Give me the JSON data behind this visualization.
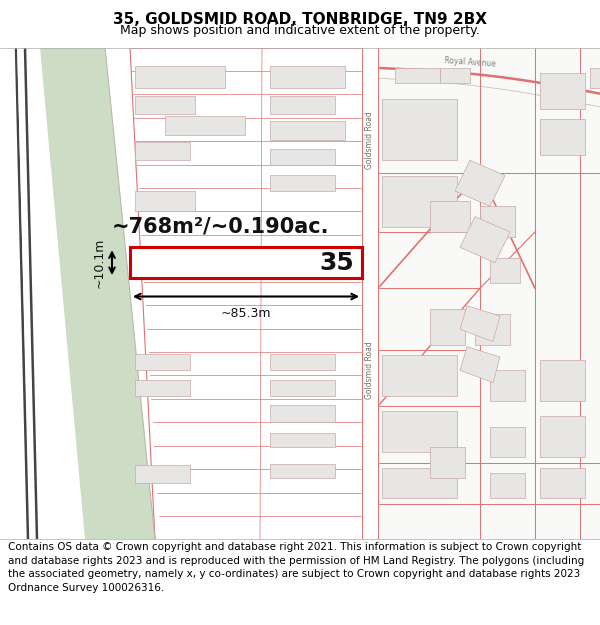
{
  "title": "35, GOLDSMID ROAD, TONBRIDGE, TN9 2BX",
  "subtitle": "Map shows position and indicative extent of the property.",
  "footer": "Contains OS data © Crown copyright and database right 2021. This information is subject to Crown copyright and database rights 2023 and is reproduced with the permission of HM Land Registry. The polygons (including the associated geometry, namely x, y co-ordinates) are subject to Crown copyright and database rights 2023 Ordnance Survey 100026316.",
  "map_bg": "#f9f9f7",
  "road_color": "#f2b8b8",
  "road_outline": "#e07070",
  "building_fill": "#e8e6e4",
  "building_outline": "#c8a8a8",
  "green_fill": "#cdddc5",
  "railway_color": "#444444",
  "highlight_rect_color": "#cc0000",
  "highlight_rect_fill": "#ffffff",
  "area_text": "~768m²/~0.190ac.",
  "width_text": "~85.3m",
  "height_text": "~10.1m",
  "property_number": "35",
  "goldsmid_road_label": "Goldsmid Road",
  "royal_avenue_label": "Royal Avenue",
  "title_fontsize": 11,
  "subtitle_fontsize": 9,
  "footer_fontsize": 7.5
}
